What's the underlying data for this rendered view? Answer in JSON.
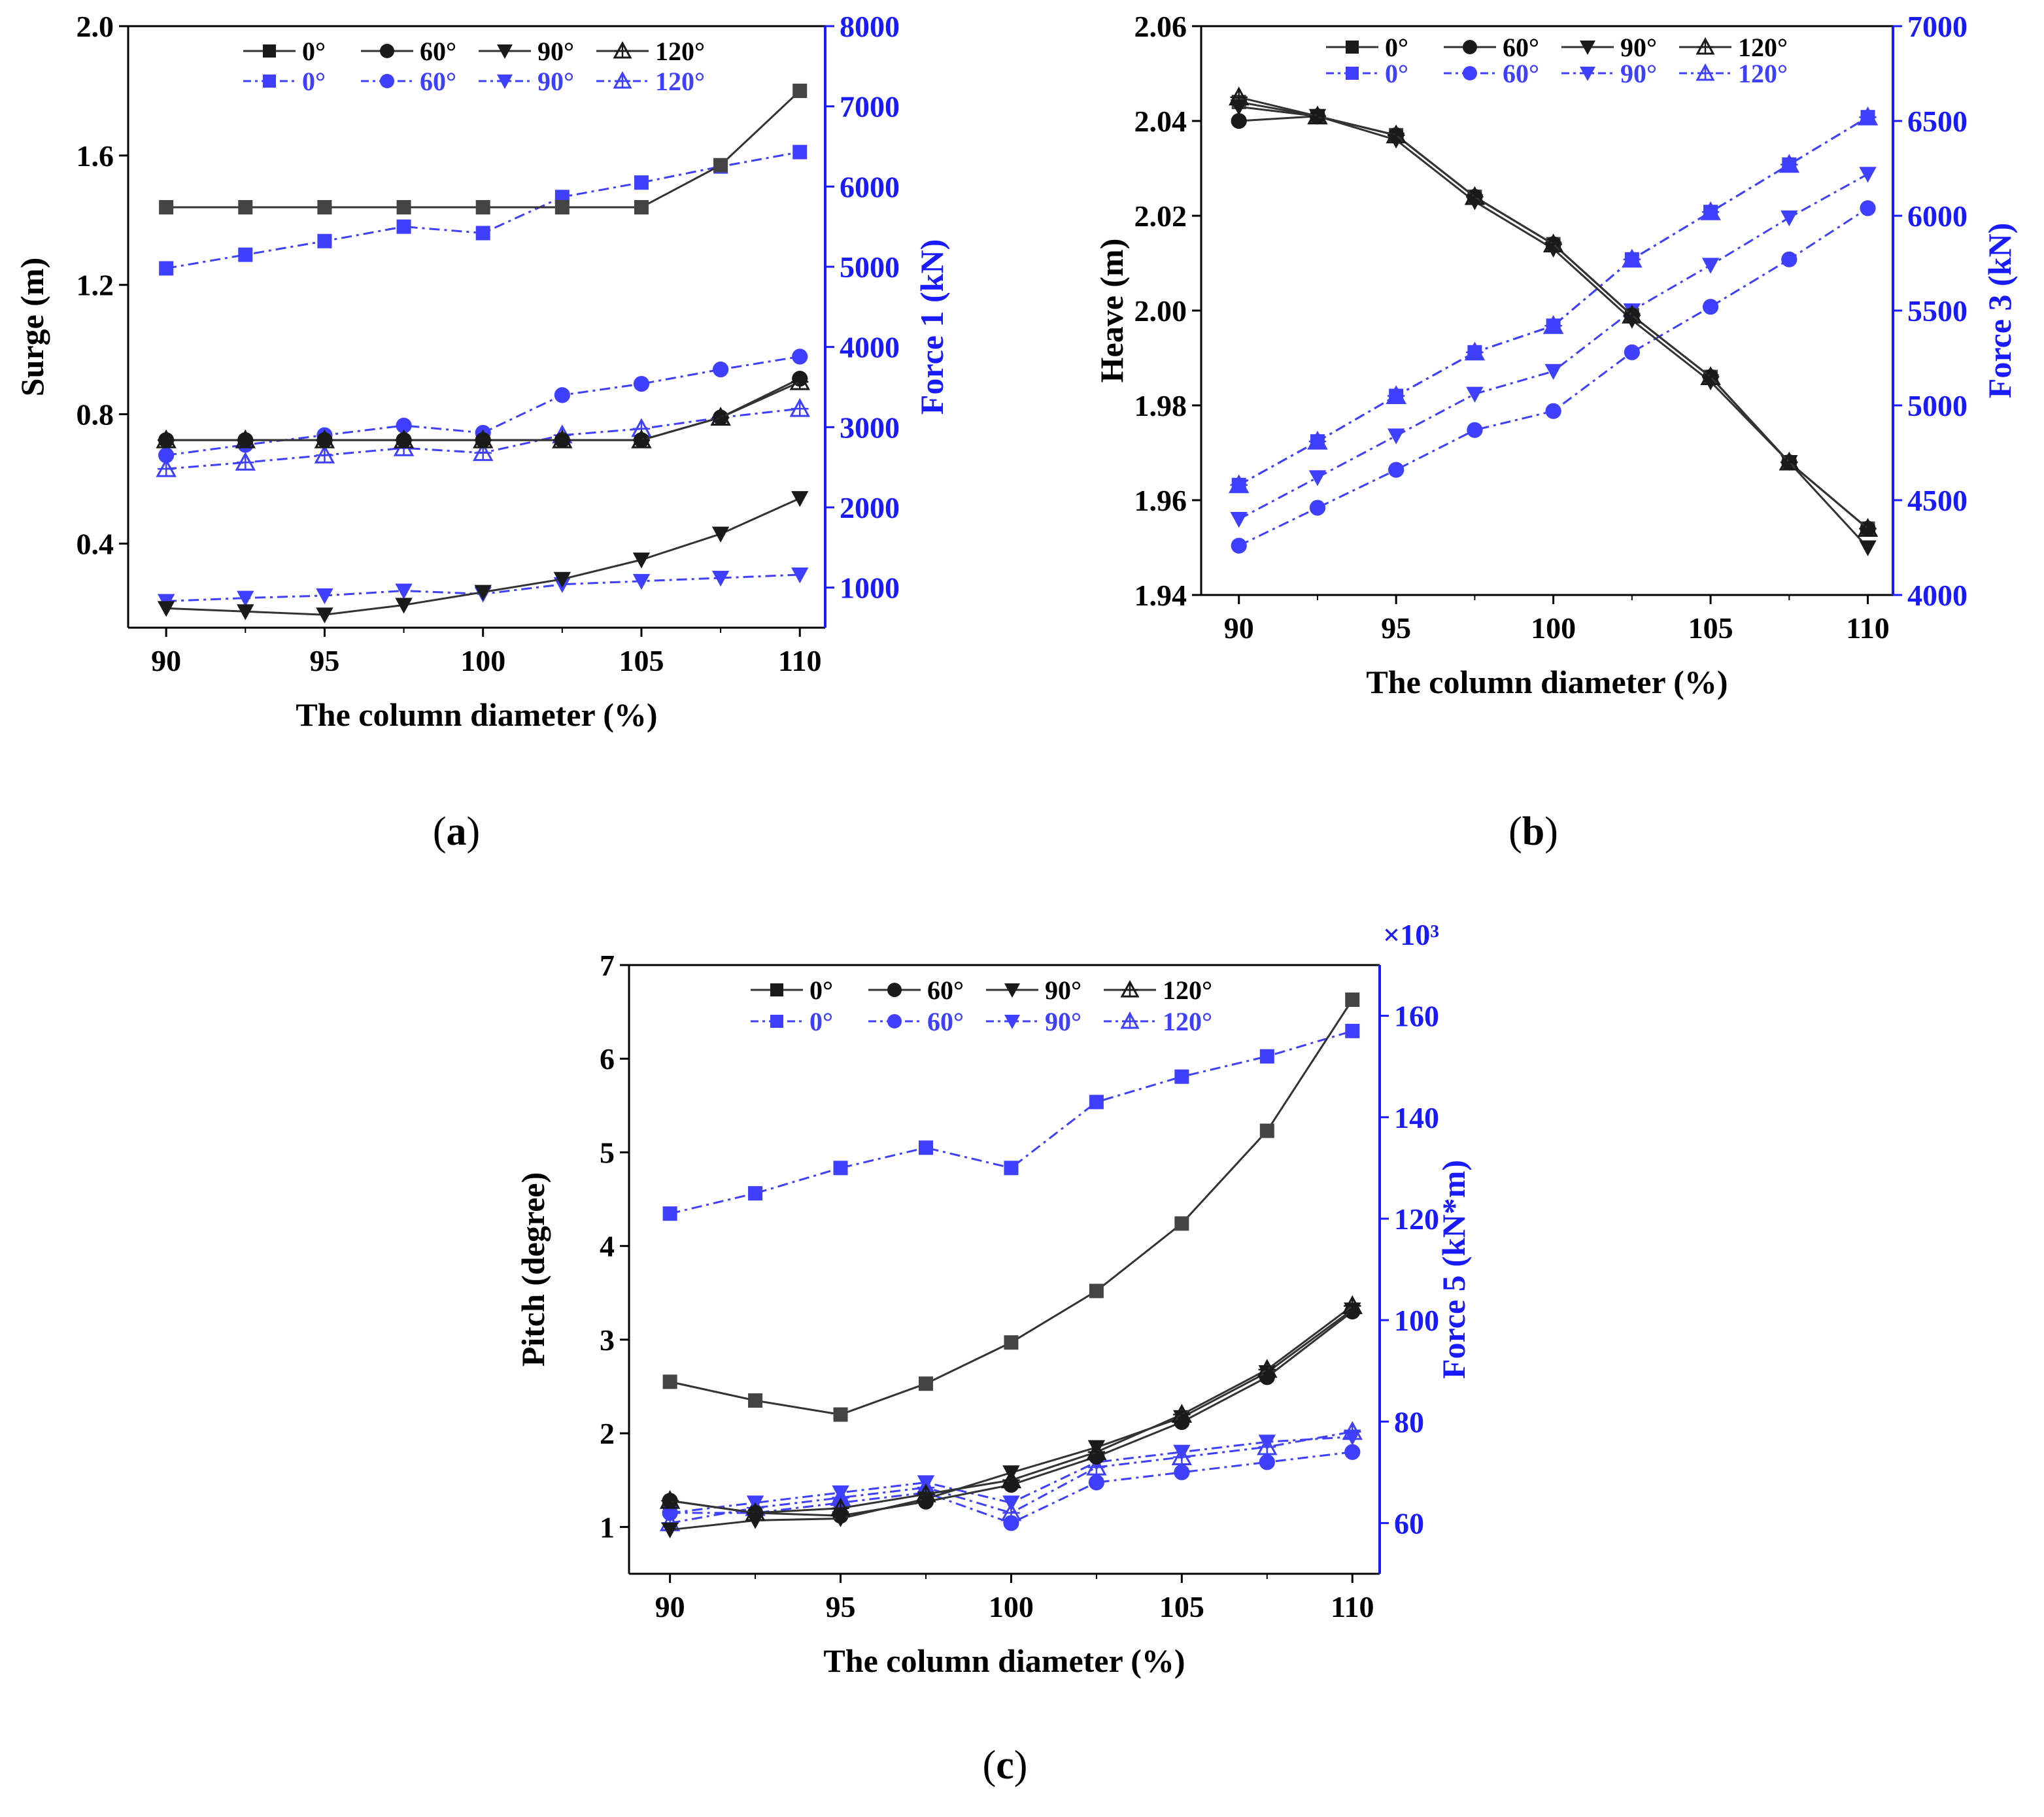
{
  "colors": {
    "black_series": "#333333",
    "blue_series": "#3f3fff",
    "blue_axis": "#1a1aff",
    "axis": "#000000"
  },
  "chart_data": [
    {
      "id": "a",
      "type": "line",
      "caption": "a",
      "xlabel": "The column diameter (%)",
      "ylabel": "Surge (m)",
      "y2label": "Force 1 (kN)",
      "y2_multiplier": "",
      "xlim": [
        88.8,
        110.8
      ],
      "ylim": [
        0.14,
        2.0
      ],
      "y2lim": [
        500,
        8000
      ],
      "xticks": [
        90,
        95,
        100,
        105,
        110
      ],
      "xtick_labels": [
        "90",
        "95",
        "100",
        "105",
        "110"
      ],
      "yticks": [
        0.4,
        0.8,
        1.2,
        1.6,
        2.0
      ],
      "ytick_labels": [
        "0.4",
        "0.8",
        "1.2",
        "1.6",
        "2.0"
      ],
      "y2ticks": [
        1000,
        2000,
        3000,
        4000,
        5000,
        6000,
        7000,
        8000
      ],
      "y2tick_labels": [
        "1000",
        "2000",
        "3000",
        "4000",
        "5000",
        "6000",
        "7000",
        "8000"
      ],
      "x": [
        90,
        92.5,
        95,
        97.5,
        100,
        102.5,
        105,
        107.5,
        110
      ],
      "legend_names": [
        "0°",
        "60°",
        "90°",
        "120°"
      ],
      "series_left": [
        {
          "name": "0°",
          "marker": "square",
          "values": [
            1.44,
            1.44,
            1.44,
            1.44,
            1.44,
            1.44,
            1.44,
            1.57,
            1.8
          ]
        },
        {
          "name": "60°",
          "marker": "circle",
          "values": [
            0.72,
            0.72,
            0.72,
            0.72,
            0.72,
            0.72,
            0.72,
            0.79,
            0.91
          ]
        },
        {
          "name": "90°",
          "marker": "triangle-down",
          "values": [
            0.2,
            0.19,
            0.18,
            0.21,
            0.25,
            0.29,
            0.35,
            0.43,
            0.54
          ]
        },
        {
          "name": "120°",
          "marker": "triangle-up-open",
          "values": [
            0.72,
            0.72,
            0.72,
            0.72,
            0.72,
            0.72,
            0.72,
            0.79,
            0.9
          ]
        }
      ],
      "series_right": [
        {
          "name": "0°",
          "marker": "square",
          "values": [
            4980,
            5150,
            5320,
            5500,
            5420,
            5870,
            6050,
            6250,
            6430
          ]
        },
        {
          "name": "60°",
          "marker": "circle",
          "values": [
            2650,
            2780,
            2900,
            3020,
            2930,
            3400,
            3540,
            3720,
            3880
          ]
        },
        {
          "name": "90°",
          "marker": "triangle-down",
          "values": [
            830,
            870,
            900,
            960,
            920,
            1040,
            1080,
            1120,
            1160
          ]
        },
        {
          "name": "120°",
          "marker": "triangle-up-open",
          "values": [
            2480,
            2560,
            2650,
            2740,
            2680,
            2900,
            2980,
            3120,
            3230
          ]
        }
      ]
    },
    {
      "id": "b",
      "type": "line",
      "caption": "b",
      "xlabel": "The column diameter (%)",
      "ylabel": "Heave (m)",
      "y2label": "Force 3 (kN)",
      "y2_multiplier": "",
      "xlim": [
        88.8,
        110.8
      ],
      "ylim": [
        1.94,
        2.06
      ],
      "y2lim": [
        4000,
        7000
      ],
      "xticks": [
        90,
        95,
        100,
        105,
        110
      ],
      "xtick_labels": [
        "90",
        "95",
        "100",
        "105",
        "110"
      ],
      "yticks": [
        1.94,
        1.96,
        1.98,
        2.0,
        2.02,
        2.04,
        2.06
      ],
      "ytick_labels": [
        "1.94",
        "1.96",
        "1.98",
        "2.00",
        "2.02",
        "2.04",
        "2.06"
      ],
      "y2ticks": [
        4000,
        4500,
        5000,
        5500,
        6000,
        6500,
        7000
      ],
      "y2tick_labels": [
        "4000",
        "4500",
        "5000",
        "5500",
        "6000",
        "6500",
        "7000"
      ],
      "x": [
        90,
        92.5,
        95,
        97.5,
        100,
        102.5,
        105,
        107.5,
        110
      ],
      "legend_names": [
        "0°",
        "60°",
        "90°",
        "120°"
      ],
      "series_left": [
        {
          "name": "0°",
          "marker": "square",
          "values": [
            2.044,
            2.041,
            2.037,
            2.024,
            2.014,
            1.999,
            1.986,
            1.968,
            1.954
          ]
        },
        {
          "name": "60°",
          "marker": "circle",
          "values": [
            2.04,
            2.041,
            2.037,
            2.024,
            2.014,
            1.999,
            1.986,
            1.968,
            1.954
          ]
        },
        {
          "name": "90°",
          "marker": "triangle-down",
          "values": [
            2.043,
            2.041,
            2.036,
            2.023,
            2.013,
            1.998,
            1.985,
            1.968,
            1.95
          ]
        },
        {
          "name": "120°",
          "marker": "triangle-up-open",
          "values": [
            2.045,
            2.041,
            2.037,
            2.024,
            2.014,
            1.999,
            1.986,
            1.968,
            1.954
          ]
        }
      ],
      "series_right": [
        {
          "name": "0°",
          "marker": "square",
          "values": [
            4580,
            4810,
            5050,
            5280,
            5420,
            5770,
            6020,
            6270,
            6520
          ]
        },
        {
          "name": "60°",
          "marker": "circle",
          "values": [
            4260,
            4460,
            4660,
            4870,
            4970,
            5280,
            5520,
            5770,
            6040
          ]
        },
        {
          "name": "90°",
          "marker": "triangle-down",
          "values": [
            4400,
            4620,
            4840,
            5060,
            5180,
            5500,
            5740,
            5990,
            6220
          ]
        },
        {
          "name": "120°",
          "marker": "triangle-up-open",
          "values": [
            4580,
            4810,
            5050,
            5280,
            5420,
            5770,
            6020,
            6270,
            6520
          ]
        }
      ]
    },
    {
      "id": "c",
      "type": "line",
      "caption": "c",
      "xlabel": "The column diameter (%)",
      "ylabel": "Pitch (degree)",
      "y2label": "Force 5 (kN*m)",
      "y2_multiplier": "×10³",
      "xlim": [
        88.8,
        110.8
      ],
      "ylim": [
        0.5,
        7.0
      ],
      "y2lim": [
        50,
        170
      ],
      "xticks": [
        90,
        95,
        100,
        105,
        110
      ],
      "xtick_labels": [
        "90",
        "95",
        "100",
        "105",
        "110"
      ],
      "yticks": [
        1,
        2,
        3,
        4,
        5,
        6,
        7
      ],
      "ytick_labels": [
        "1",
        "2",
        "3",
        "4",
        "5",
        "6",
        "7"
      ],
      "y2ticks": [
        60,
        80,
        100,
        120,
        140,
        160
      ],
      "y2tick_labels": [
        "60",
        "80",
        "100",
        "120",
        "140",
        "160"
      ],
      "x": [
        90,
        92.5,
        95,
        97.5,
        100,
        102.5,
        105,
        107.5,
        110
      ],
      "legend_names": [
        "0°",
        "60°",
        "90°",
        "120°"
      ],
      "series_left": [
        {
          "name": "0°",
          "marker": "square",
          "values": [
            2.55,
            2.35,
            2.2,
            2.53,
            2.97,
            3.52,
            4.24,
            5.23,
            6.63
          ]
        },
        {
          "name": "60°",
          "marker": "circle",
          "values": [
            1.28,
            1.15,
            1.12,
            1.27,
            1.45,
            1.75,
            2.12,
            2.6,
            3.3
          ]
        },
        {
          "name": "90°",
          "marker": "triangle-down",
          "values": [
            0.97,
            1.07,
            1.09,
            1.3,
            1.58,
            1.85,
            2.17,
            2.65,
            3.32
          ]
        },
        {
          "name": "120°",
          "marker": "triangle-up-open",
          "values": [
            1.28,
            1.15,
            1.2,
            1.35,
            1.5,
            1.8,
            2.2,
            2.68,
            3.36
          ]
        }
      ],
      "series_right": [
        {
          "name": "0°",
          "marker": "square",
          "values": [
            121,
            125,
            130,
            134,
            130,
            143,
            148,
            152,
            157
          ]
        },
        {
          "name": "60°",
          "marker": "circle",
          "values": [
            62,
            62,
            64,
            66,
            60,
            68,
            70,
            72,
            74
          ]
        },
        {
          "name": "90°",
          "marker": "triangle-down",
          "values": [
            62,
            64,
            66,
            68,
            64,
            72,
            74,
            76,
            77
          ]
        },
        {
          "name": "120°",
          "marker": "triangle-up-open",
          "values": [
            60,
            63,
            65,
            67,
            62,
            71,
            73,
            75,
            78
          ]
        }
      ]
    }
  ]
}
